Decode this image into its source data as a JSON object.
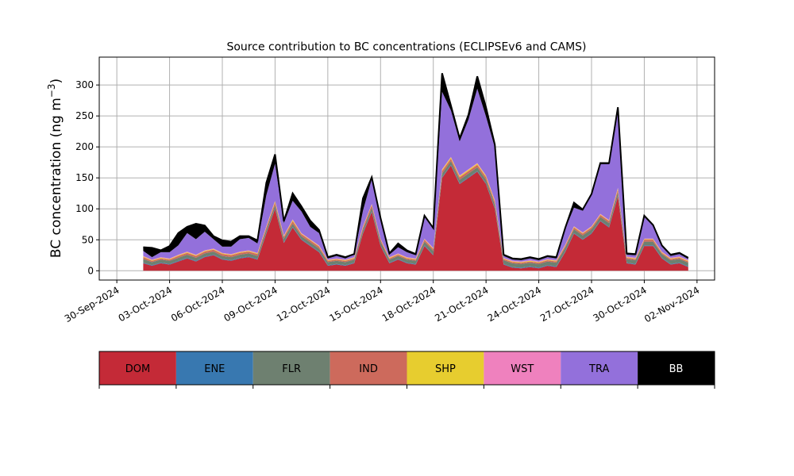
{
  "chart_data": {
    "type": "area",
    "stacked": true,
    "title": "Source contribution to BC concentrations (ECLIPSEv6 and CAMS)",
    "ylabel": "BC concentration (ng m",
    "ylabel_unit_exp": "−3",
    "ylabel_close": ")",
    "ylim": [
      -15,
      345
    ],
    "yticks": [
      0,
      50,
      100,
      150,
      200,
      250,
      300
    ],
    "xlim": [
      "2024-09-29",
      "2024-11-03"
    ],
    "xticks": [
      "2024-09-30",
      "2024-10-03",
      "2024-10-06",
      "2024-10-09",
      "2024-10-12",
      "2024-10-15",
      "2024-10-18",
      "2024-10-21",
      "2024-10-24",
      "2024-10-27",
      "2024-10-30",
      "2024-11-02"
    ],
    "xtick_labels": [
      "30-Sep-2024",
      "03-Oct-2024",
      "06-Oct-2024",
      "09-Oct-2024",
      "12-Oct-2024",
      "15-Oct-2024",
      "18-Oct-2024",
      "21-Oct-2024",
      "24-Oct-2024",
      "27-Oct-2024",
      "30-Oct-2024",
      "02-Nov-2024"
    ],
    "grid": true,
    "legend_position": "below",
    "x": [
      "2024-10-01T12:00",
      "2024-10-02T00:00",
      "2024-10-02T12:00",
      "2024-10-03T00:00",
      "2024-10-03T12:00",
      "2024-10-04T00:00",
      "2024-10-04T12:00",
      "2024-10-05T00:00",
      "2024-10-05T12:00",
      "2024-10-06T00:00",
      "2024-10-06T12:00",
      "2024-10-07T00:00",
      "2024-10-07T12:00",
      "2024-10-08T00:00",
      "2024-10-08T12:00",
      "2024-10-09T00:00",
      "2024-10-09T12:00",
      "2024-10-10T00:00",
      "2024-10-10T12:00",
      "2024-10-11T00:00",
      "2024-10-11T12:00",
      "2024-10-12T00:00",
      "2024-10-12T12:00",
      "2024-10-13T00:00",
      "2024-10-13T12:00",
      "2024-10-14T00:00",
      "2024-10-14T12:00",
      "2024-10-15T00:00",
      "2024-10-15T12:00",
      "2024-10-16T00:00",
      "2024-10-16T12:00",
      "2024-10-17T00:00",
      "2024-10-17T12:00",
      "2024-10-18T00:00",
      "2024-10-18T12:00",
      "2024-10-19T00:00",
      "2024-10-19T12:00",
      "2024-10-20T00:00",
      "2024-10-20T12:00",
      "2024-10-21T00:00",
      "2024-10-21T12:00",
      "2024-10-22T00:00",
      "2024-10-22T12:00",
      "2024-10-23T00:00",
      "2024-10-23T12:00",
      "2024-10-24T00:00",
      "2024-10-24T12:00",
      "2024-10-25T00:00",
      "2024-10-25T12:00",
      "2024-10-26T00:00",
      "2024-10-26T12:00",
      "2024-10-27T00:00",
      "2024-10-27T12:00",
      "2024-10-28T00:00",
      "2024-10-28T12:00",
      "2024-10-29T00:00",
      "2024-10-29T12:00",
      "2024-10-30T00:00",
      "2024-10-30T12:00",
      "2024-10-31T00:00",
      "2024-10-31T12:00",
      "2024-11-01T00:00",
      "2024-11-01T12:00"
    ],
    "series": [
      {
        "name": "DOM",
        "color": "#c42a37",
        "values": [
          12,
          8,
          12,
          10,
          15,
          20,
          15,
          22,
          25,
          18,
          16,
          20,
          22,
          18,
          60,
          100,
          45,
          70,
          50,
          40,
          30,
          8,
          10,
          8,
          12,
          60,
          95,
          40,
          12,
          18,
          12,
          10,
          40,
          25,
          150,
          170,
          140,
          150,
          160,
          140,
          100,
          10,
          5,
          4,
          6,
          4,
          8,
          6,
          30,
          60,
          50,
          60,
          80,
          70,
          120,
          12,
          10,
          40,
          40,
          20,
          10,
          12,
          6
        ]
      },
      {
        "name": "ENE",
        "color": "#3878b0",
        "values": [
          1,
          1,
          1,
          1,
          1,
          1,
          1,
          1,
          1,
          1,
          1,
          1,
          1,
          1,
          1,
          1,
          1,
          1,
          1,
          1,
          1,
          1,
          1,
          1,
          1,
          1,
          1,
          1,
          1,
          1,
          1,
          1,
          1,
          1,
          1,
          1,
          1,
          1,
          1,
          1,
          1,
          1,
          1,
          1,
          1,
          1,
          1,
          1,
          1,
          1,
          1,
          1,
          1,
          1,
          1,
          1,
          1,
          1,
          1,
          1,
          1,
          1,
          1
        ]
      },
      {
        "name": "FLR",
        "color": "#6e8070",
        "values": [
          6,
          5,
          5,
          5,
          5,
          5,
          5,
          5,
          5,
          5,
          5,
          5,
          5,
          5,
          5,
          5,
          6,
          5,
          5,
          5,
          5,
          5,
          5,
          5,
          5,
          5,
          6,
          6,
          5,
          5,
          5,
          5,
          6,
          6,
          6,
          6,
          6,
          6,
          6,
          6,
          6,
          6,
          6,
          6,
          6,
          6,
          6,
          6,
          6,
          6,
          6,
          6,
          6,
          6,
          6,
          6,
          6,
          6,
          6,
          6,
          6,
          6,
          6
        ]
      },
      {
        "name": "IND",
        "color": "#cd6a5c",
        "values": [
          3,
          2,
          2,
          2,
          3,
          3,
          3,
          3,
          3,
          3,
          3,
          3,
          3,
          3,
          4,
          4,
          3,
          4,
          3,
          3,
          3,
          2,
          2,
          2,
          2,
          4,
          4,
          3,
          2,
          2,
          2,
          2,
          3,
          3,
          4,
          4,
          4,
          4,
          4,
          4,
          4,
          2,
          2,
          2,
          2,
          2,
          2,
          2,
          3,
          3,
          3,
          3,
          3,
          3,
          4,
          2,
          2,
          3,
          3,
          2,
          2,
          2,
          2
        ]
      },
      {
        "name": "SHP",
        "color": "#e7cd2f",
        "values": [
          1,
          1,
          1,
          1,
          1,
          1,
          1,
          1,
          1,
          1,
          1,
          1,
          1,
          1,
          1,
          2,
          1,
          2,
          1,
          1,
          1,
          1,
          1,
          1,
          1,
          1,
          1,
          1,
          1,
          1,
          1,
          1,
          1,
          1,
          2,
          2,
          2,
          2,
          2,
          2,
          2,
          1,
          1,
          1,
          1,
          1,
          1,
          1,
          1,
          1,
          1,
          1,
          1,
          1,
          2,
          1,
          1,
          1,
          1,
          1,
          1,
          1,
          1
        ]
      },
      {
        "name": "WST",
        "color": "#ef81be",
        "values": [
          1,
          1,
          1,
          1,
          1,
          1,
          1,
          1,
          1,
          1,
          1,
          1,
          1,
          1,
          1,
          1,
          1,
          1,
          1,
          1,
          1,
          1,
          1,
          1,
          1,
          1,
          1,
          1,
          1,
          1,
          1,
          1,
          1,
          1,
          1,
          1,
          1,
          1,
          1,
          1,
          1,
          1,
          1,
          1,
          1,
          1,
          1,
          1,
          1,
          1,
          1,
          1,
          1,
          1,
          1,
          1,
          1,
          1,
          1,
          1,
          1,
          1,
          1
        ]
      },
      {
        "name": "TRA",
        "color": "#9370db",
        "values": [
          8,
          4,
          8,
          10,
          15,
          30,
          25,
          30,
          15,
          10,
          12,
          20,
          20,
          15,
          50,
          60,
          20,
          30,
          35,
          20,
          20,
          2,
          4,
          2,
          4,
          25,
          40,
          30,
          4,
          10,
          8,
          5,
          35,
          30,
          125,
          75,
          55,
          80,
          120,
          95,
          85,
          3,
          2,
          2,
          3,
          2,
          3,
          3,
          25,
          30,
          35,
          50,
          80,
          90,
          125,
          3,
          4,
          35,
          20,
          8,
          3,
          4,
          2
        ]
      },
      {
        "name": "BB",
        "color": "#000000",
        "values": [
          6,
          15,
          3,
          10,
          20,
          10,
          25,
          10,
          5,
          10,
          8,
          5,
          3,
          5,
          20,
          15,
          3,
          12,
          8,
          10,
          5,
          2,
          2,
          2,
          1,
          20,
          3,
          3,
          2,
          6,
          3,
          2,
          2,
          2,
          30,
          8,
          5,
          8,
          20,
          15,
          5,
          2,
          2,
          2,
          2,
          2,
          2,
          2,
          2,
          8,
          2,
          2,
          2,
          2,
          5,
          2,
          2,
          2,
          2,
          2,
          2,
          2,
          2
        ]
      }
    ]
  }
}
